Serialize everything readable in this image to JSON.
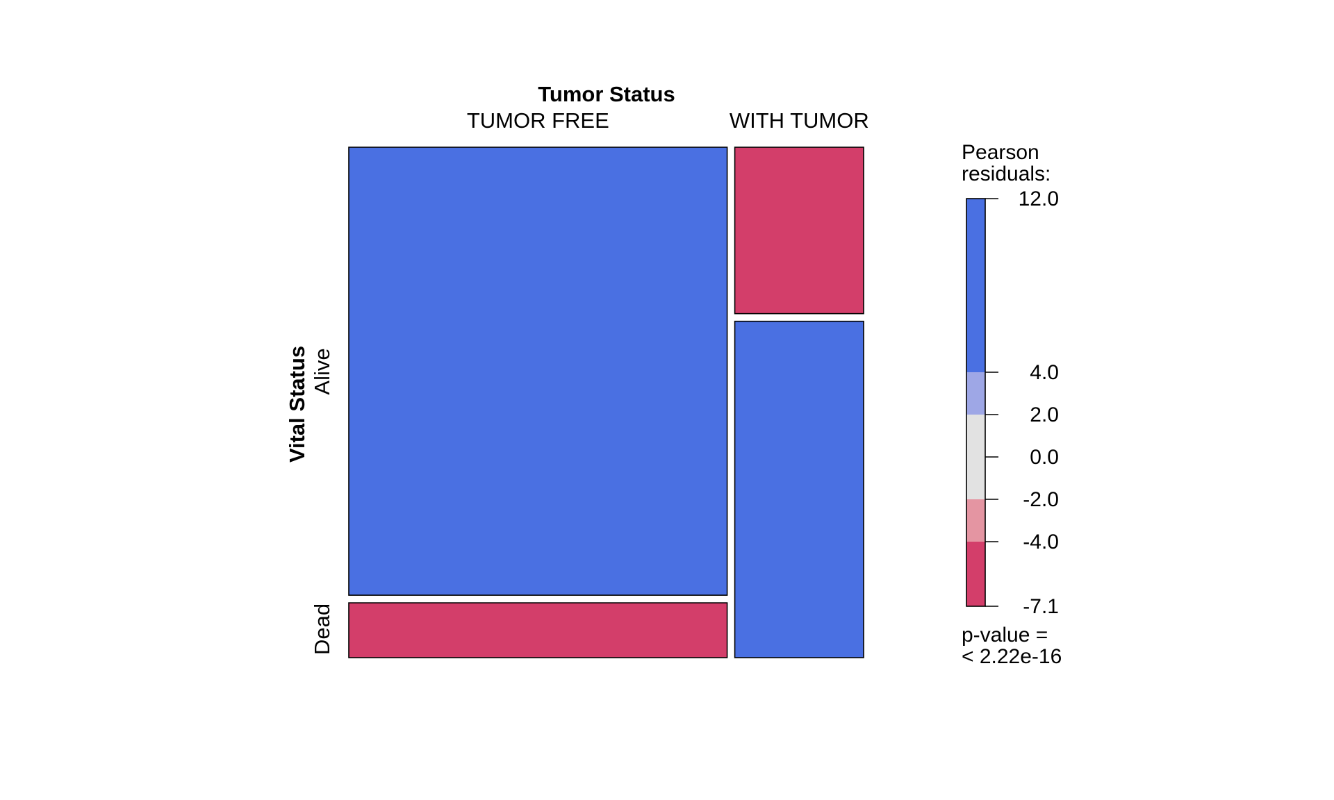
{
  "chart_data": {
    "type": "mosaic",
    "column_variable": "Tumor Status",
    "row_variable": "Vital Status",
    "columns": [
      {
        "label": "TUMOR FREE",
        "share": 0.746
      },
      {
        "label": "WITH TUMOR",
        "share": 0.254
      }
    ],
    "rows": [
      "Alive",
      "Dead"
    ],
    "cells": [
      {
        "column": "TUMOR FREE",
        "row": "Alive",
        "share_within_column": 0.891,
        "shading": "positive"
      },
      {
        "column": "TUMOR FREE",
        "row": "Dead",
        "share_within_column": 0.109,
        "shading": "negative"
      },
      {
        "column": "WITH TUMOR",
        "row": "Alive",
        "share_within_column": 0.331,
        "shading": "negative"
      },
      {
        "column": "WITH TUMOR",
        "row": "Dead",
        "share_within_column": 0.669,
        "shading": "positive"
      }
    ],
    "legend": {
      "title_line1": "Pearson",
      "title_line2": "residuals:",
      "min": -7.1,
      "max": 12.0,
      "ticks": [
        {
          "value": 12.0,
          "label": "12.0"
        },
        {
          "value": 4.0,
          "label": "4.0"
        },
        {
          "value": 2.0,
          "label": "2.0"
        },
        {
          "value": 0.0,
          "label": "0.0"
        },
        {
          "value": -2.0,
          "label": "-2.0"
        },
        {
          "value": -4.0,
          "label": "-4.0"
        },
        {
          "value": -7.1,
          "label": "-7.1"
        }
      ],
      "bands": [
        {
          "from": 4.0,
          "to": 12.0,
          "color": "#4a70e2"
        },
        {
          "from": 2.0,
          "to": 4.0,
          "color": "#9ea7e6"
        },
        {
          "from": -2.0,
          "to": 2.0,
          "color": "#e2e2e2"
        },
        {
          "from": -4.0,
          "to": -2.0,
          "color": "#e495a2"
        },
        {
          "from": -7.1,
          "to": -4.0,
          "color": "#d33e6a"
        }
      ],
      "pvalue_line1": "p-value =",
      "pvalue_line2": "< 2.22e-16"
    },
    "colors": {
      "positive": "#4a70e2",
      "negative": "#d33e6a"
    }
  }
}
